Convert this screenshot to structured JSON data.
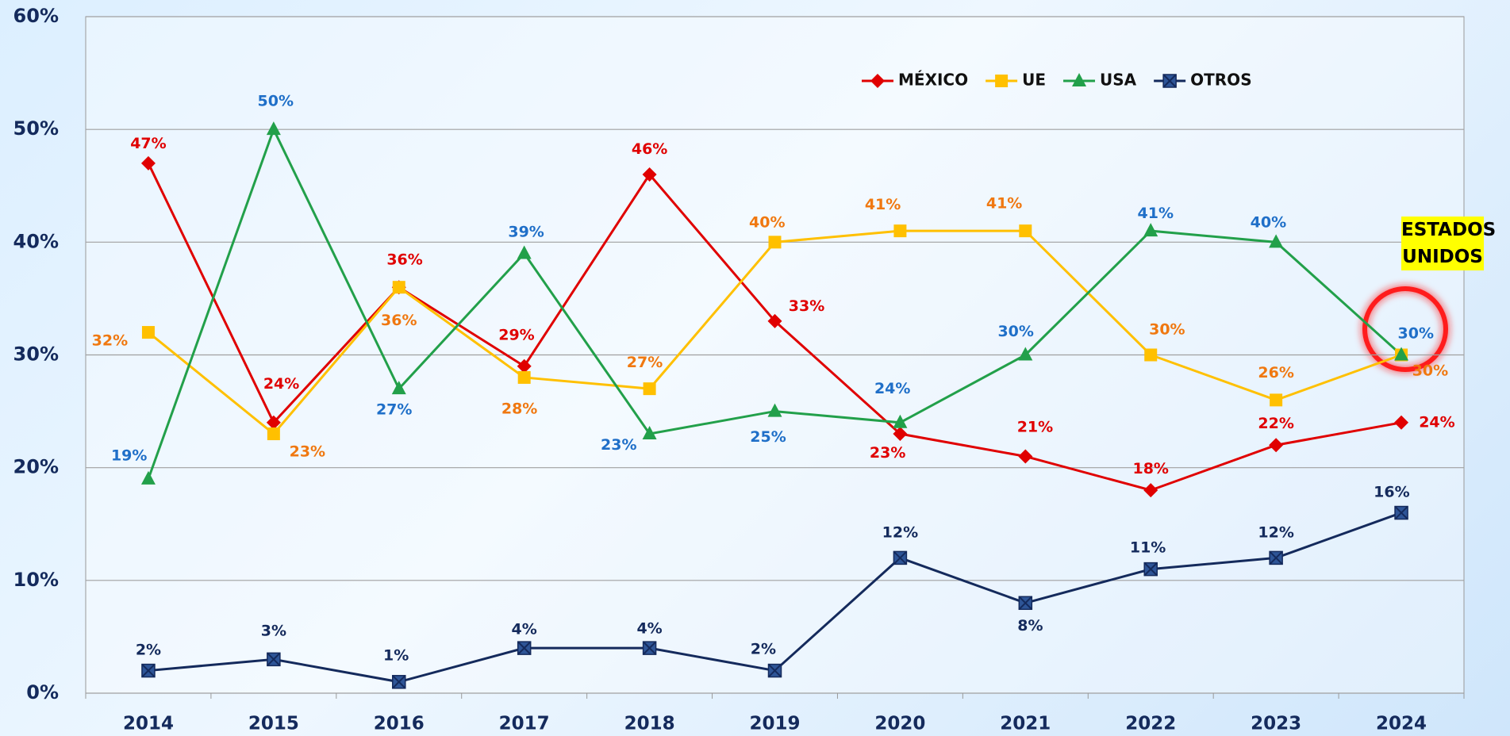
{
  "chart_data": {
    "type": "line",
    "categories": [
      "2014",
      "2015",
      "2016",
      "2017",
      "2018",
      "2019",
      "2020",
      "2021",
      "2022",
      "2023",
      "2024"
    ],
    "series": [
      {
        "name": "MÉXICO",
        "color": "#e00000",
        "label_color": "#e00000",
        "marker": "diamond",
        "values": [
          47,
          24,
          36,
          29,
          46,
          33,
          23,
          21,
          18,
          22,
          24
        ],
        "value_labels": [
          "47%",
          "24%",
          "36%",
          "29%",
          "46%",
          "33%",
          "23%",
          "21%",
          "18%",
          "22%",
          "24%"
        ]
      },
      {
        "name": "UE",
        "color": "#ffc000",
        "label_color": "#f07810",
        "marker": "square",
        "values": [
          32,
          23,
          36,
          28,
          27,
          40,
          41,
          41,
          30,
          26,
          30
        ],
        "value_labels": [
          "32%",
          "23%",
          "36%",
          "28%",
          "27%",
          "40%",
          "41%",
          "41%",
          "30%",
          "26%",
          "30%"
        ]
      },
      {
        "name": "USA",
        "color": "#22a04a",
        "label_color": "#1f6fc8",
        "marker": "triangle",
        "values": [
          19,
          50,
          27,
          39,
          23,
          25,
          24,
          30,
          41,
          40,
          30
        ],
        "value_labels": [
          "19%",
          "50%",
          "27%",
          "39%",
          "23%",
          "25%",
          "24%",
          "30%",
          "41%",
          "40%",
          "30%"
        ]
      },
      {
        "name": "OTROS",
        "color": "#142a5c",
        "label_color": "#142a5c",
        "marker": "xsquare",
        "values": [
          2,
          3,
          1,
          4,
          4,
          2,
          12,
          8,
          11,
          12,
          16
        ],
        "value_labels": [
          "2%",
          "3%",
          "1%",
          "4%",
          "4%",
          "2%",
          "12%",
          "8%",
          "11%",
          "12%",
          "16%"
        ]
      }
    ],
    "ylim": [
      0,
      60
    ],
    "yticks": [
      {
        "value": 0,
        "label": "0%"
      },
      {
        "value": 10,
        "label": "10%"
      },
      {
        "value": 20,
        "label": "20%"
      },
      {
        "value": 30,
        "label": "30%"
      },
      {
        "value": 40,
        "label": "40%"
      },
      {
        "value": 50,
        "label": "50%"
      },
      {
        "value": 60,
        "label": "60%"
      }
    ],
    "grid": true,
    "legend": "top-right",
    "annotation": "ESTADOS UNIDOS"
  }
}
